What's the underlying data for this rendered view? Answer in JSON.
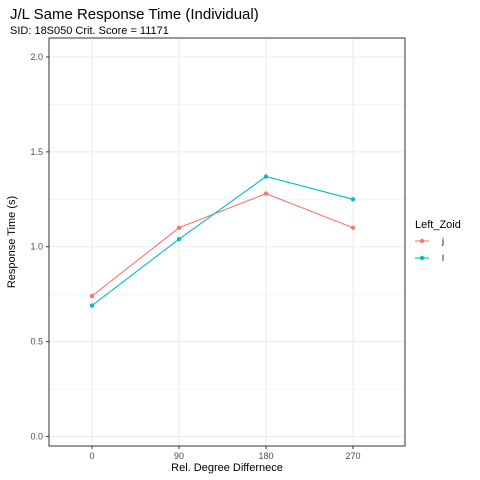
{
  "chart_data": {
    "type": "line",
    "title": "J/L Same Response Time (Individual)",
    "subtitle": "SID:  18S050 Crit. Score =  11171",
    "xlabel": "Rel. Degree Differnece",
    "ylabel": "Response Time (s)",
    "categories": [
      "0",
      "90",
      "180",
      "270"
    ],
    "ylim": [
      -0.05,
      2.1
    ],
    "yticks": [
      0.0,
      0.5,
      1.0,
      1.5,
      2.0
    ],
    "ytick_labels": [
      "0.0",
      "0.5",
      "1.0",
      "1.5",
      "2.0"
    ],
    "grid": true,
    "legend": {
      "title": "Left_Zoid",
      "position": "right"
    },
    "series": [
      {
        "name": "j",
        "color": "#F8766D",
        "values": [
          0.74,
          1.1,
          1.28,
          1.1
        ]
      },
      {
        "name": "l",
        "color": "#00BFC4",
        "values": [
          0.69,
          1.04,
          1.37,
          1.25
        ]
      }
    ]
  }
}
